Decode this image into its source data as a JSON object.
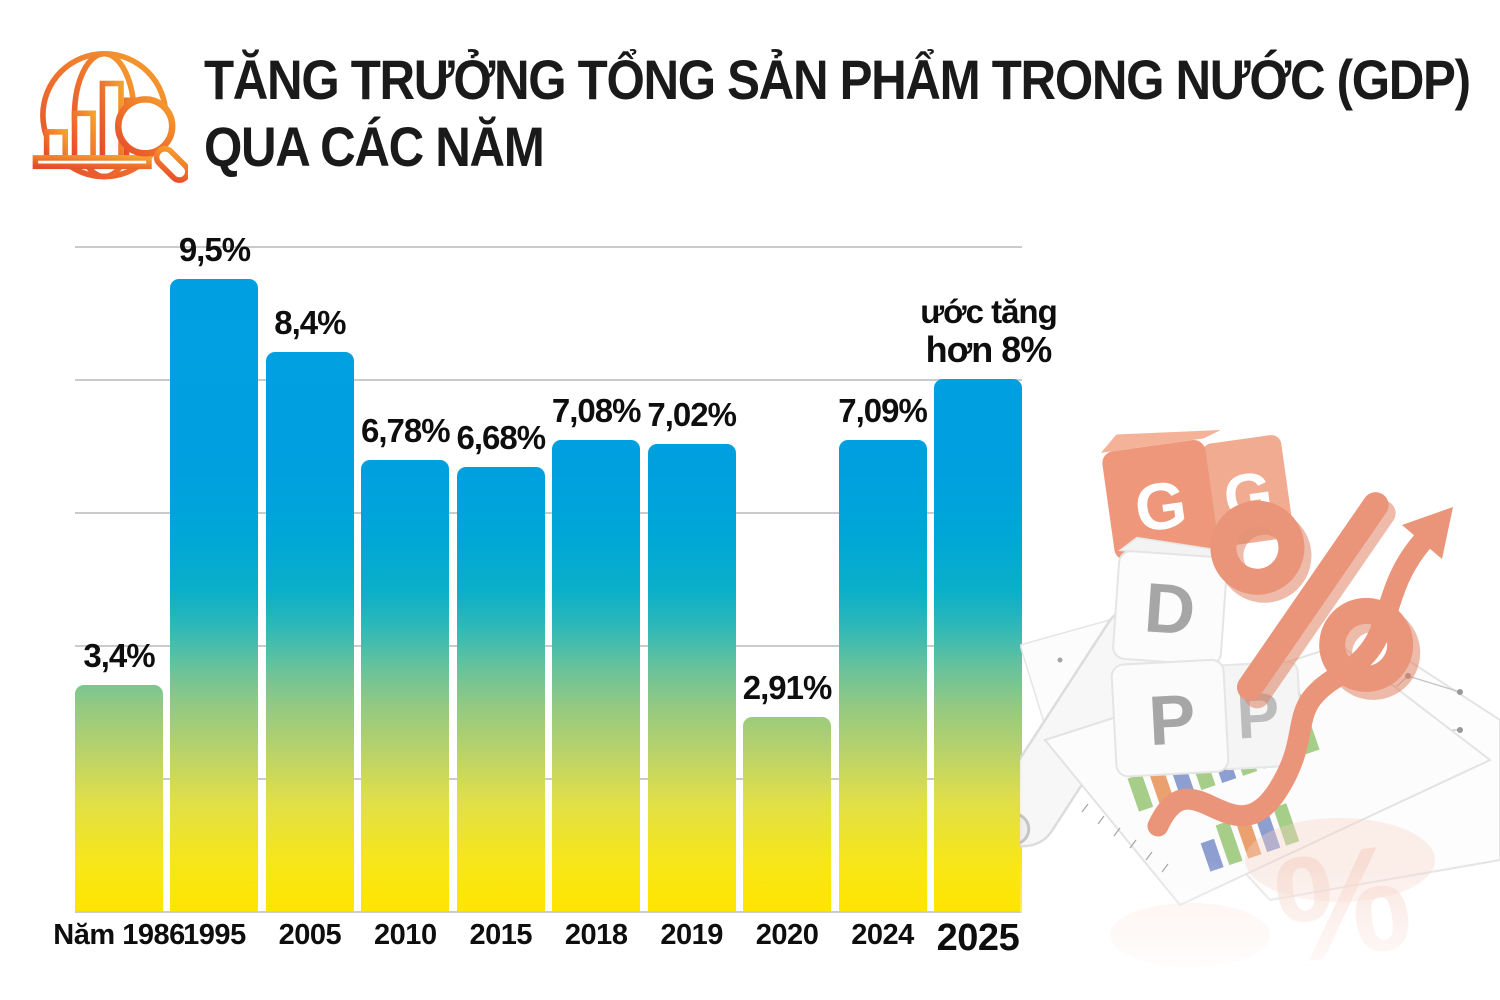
{
  "header": {
    "title_line1": "TĂNG TRƯỞNG TỔNG SẢN PHẨM TRONG NƯỚC (GDP)",
    "title_line2": "QUA CÁC NĂM",
    "icon_gradient_start": "#E84B2B",
    "icon_gradient_end": "#F6A02D"
  },
  "chart_data": {
    "type": "bar",
    "title": "TĂNG TRƯỞNG TỔNG SẢN PHẨM TRONG NƯỚC (GDP) QUA CÁC NĂM",
    "categories": [
      "Năm 1986",
      "1995",
      "2005",
      "2010",
      "2015",
      "2018",
      "2019",
      "2020",
      "2024",
      "2025"
    ],
    "values": [
      3.4,
      9.5,
      8.4,
      6.78,
      6.68,
      7.08,
      7.02,
      2.91,
      7.09,
      8.0
    ],
    "value_labels": [
      "3,4%",
      "9,5%",
      "8,4%",
      "6,78%",
      "6,68%",
      "7,08%",
      "7,02%",
      "2,91%",
      "7,09%",
      ""
    ],
    "last_bar_note": {
      "line1": "ước tăng",
      "line2": "hơn 8%"
    },
    "xlabel": "",
    "ylabel": "",
    "ylim": [
      0,
      10
    ],
    "gridline_step": 2,
    "grid": true,
    "y_tick_labels_visible": false,
    "gridline_color": "#cbcbcb",
    "bar_gradient_bottom_to_top": [
      "#FFE500",
      "#E0DF48",
      "#93C982",
      "#2EB8B8",
      "#00A6D7",
      "#009FE3"
    ],
    "legend": null
  },
  "illustration": {
    "dice_letters": [
      "G",
      "D",
      "P"
    ],
    "percent_symbol": "%",
    "accent_color": "#E8886A"
  }
}
